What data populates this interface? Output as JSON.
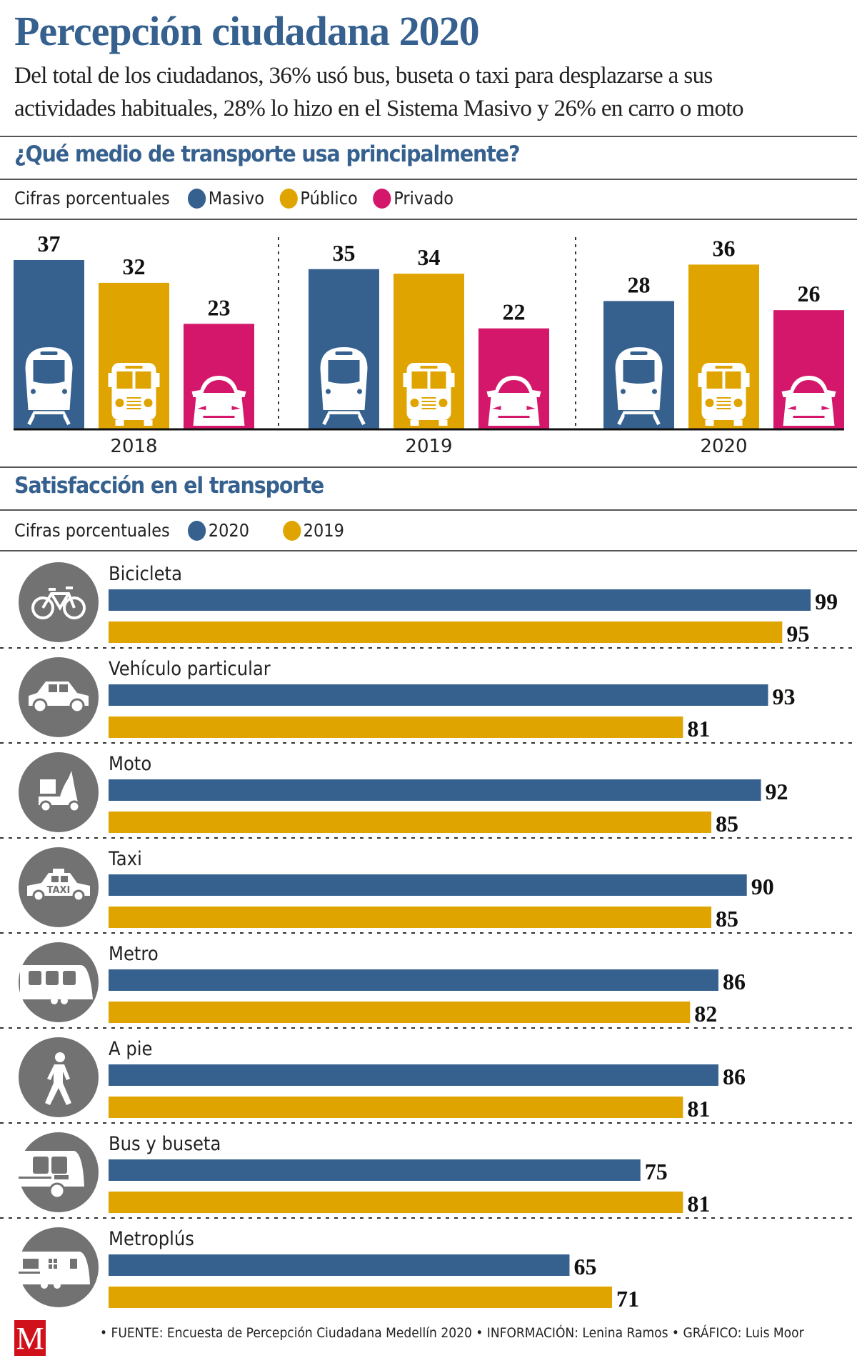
{
  "header": {
    "title": "Percepción ciudadana 2020",
    "subtitle_lines": [
      "Del total de los ciudadanos, 36% usó bus, buseta o taxi para desplazarse a sus",
      "actividades habituales, 28% lo hizo en el Sistema Masivo y 26% en carro o moto"
    ]
  },
  "colors": {
    "masivo": "#36618f",
    "publico": "#e0a400",
    "privado": "#d4176b",
    "y2020": "#36618f",
    "y2019": "#e0a400",
    "icon_circle": "#727272",
    "title": "#36618f",
    "logo": "#d0101a"
  },
  "section1": {
    "title": "¿Qué medio de transporte usa principalmente?",
    "legend_label": "Cifras porcentuales",
    "legend": [
      "Masivo",
      "Público",
      "Privado"
    ]
  },
  "section2": {
    "title": "Satisfacción en el transporte",
    "legend_label": "Cifras porcentuales",
    "legend": [
      "2020",
      "2019"
    ]
  },
  "chart_data": [
    {
      "type": "bar",
      "title": "¿Qué medio de transporte usa principalmente?",
      "subtitle": "Cifras porcentuales",
      "categories": [
        "2018",
        "2019",
        "2020"
      ],
      "series": [
        {
          "name": "Masivo",
          "icon": "train-icon",
          "values": [
            37,
            35,
            28
          ]
        },
        {
          "name": "Público",
          "icon": "bus-icon",
          "values": [
            32,
            34,
            36
          ]
        },
        {
          "name": "Privado",
          "icon": "car-icon",
          "values": [
            23,
            22,
            26
          ]
        }
      ],
      "ylim": [
        0,
        40
      ],
      "grid": false,
      "legend": "top-left"
    },
    {
      "type": "bar",
      "orientation": "horizontal",
      "title": "Satisfacción en el transporte",
      "subtitle": "Cifras porcentuales",
      "categories": [
        "Bicicleta",
        "Vehículo particular",
        "Moto",
        "Taxi",
        "Metro",
        "A pie",
        "Bus y buseta",
        "Metroplús"
      ],
      "icons": [
        "bicycle-icon",
        "car-icon",
        "scooter-icon",
        "taxi-icon",
        "metro-icon",
        "pedestrian-icon",
        "bus-icon",
        "metroplus-icon"
      ],
      "series": [
        {
          "name": "2020",
          "values": [
            99,
            93,
            92,
            90,
            86,
            86,
            75,
            65
          ]
        },
        {
          "name": "2019",
          "values": [
            95,
            81,
            85,
            85,
            82,
            81,
            81,
            71
          ]
        }
      ],
      "xlim": [
        0,
        100
      ],
      "grid": false,
      "legend": "top-left"
    }
  ],
  "footer": {
    "logo_letter": "M",
    "credits": "• FUENTE: Encuesta de Percepción Ciudadana Medellín 2020 • INFORMACIÓN: Lenina Ramos • GRÁFICO: Luis Moor"
  }
}
